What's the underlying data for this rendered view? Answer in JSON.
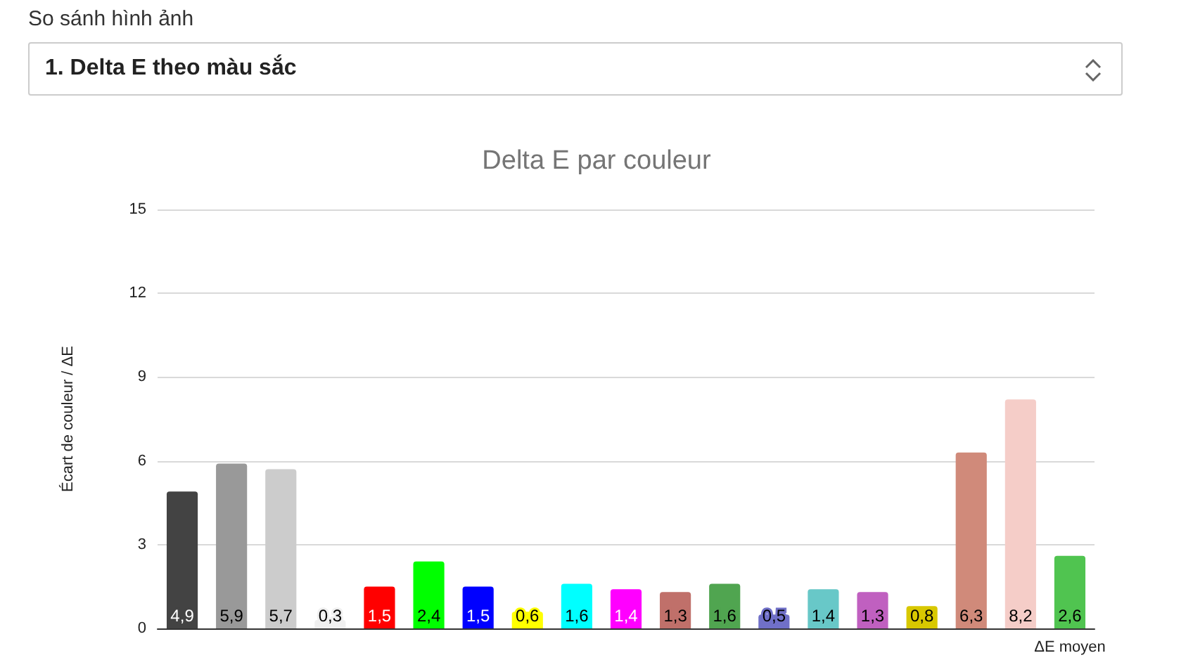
{
  "chart_data": {
    "type": "bar",
    "title": "Delta E par couleur",
    "ylabel": "Écart de couleur / ΔE",
    "annotations": [
      "So sánh hình ảnh",
      "1. Delta E theo màu sắc"
    ],
    "categories": [
      null,
      null,
      null,
      null,
      null,
      null,
      null,
      null,
      null,
      null,
      null,
      null,
      null,
      null,
      null,
      null,
      null,
      null,
      "ΔE moyen"
    ],
    "values": [
      4.9,
      5.9,
      5.7,
      0.3,
      1.5,
      2.4,
      1.5,
      0.6,
      1.6,
      1.4,
      1.3,
      1.6,
      0.5,
      1.4,
      1.3,
      0.8,
      6.3,
      8.2,
      2.6
    ],
    "value_labels": [
      "4,9",
      "5,9",
      "5,7",
      "0,3",
      "1,5",
      "2,4",
      "1,5",
      "0,6",
      "1,6",
      "1,4",
      "1,3",
      "1,6",
      "0,5",
      "1,4",
      "1,3",
      "0,8",
      "6,3",
      "8,2",
      "2,6"
    ],
    "colors": [
      "#434343",
      "#999999",
      "#cccccc",
      "#f0f0f0",
      "#ff0000",
      "#00ff00",
      "#0000ff",
      "#ffff00",
      "#00ffff",
      "#ff00ff",
      "#c0706a",
      "#50a550",
      "#7070c8",
      "#68c8c8",
      "#c060c0",
      "#d8c800",
      "#d08a7a",
      "#f5cdc8",
      "#50c450"
    ],
    "ylim": [
      0,
      15
    ],
    "yticks": [
      0,
      3,
      6,
      9,
      12,
      15
    ],
    "grid": "y"
  }
}
